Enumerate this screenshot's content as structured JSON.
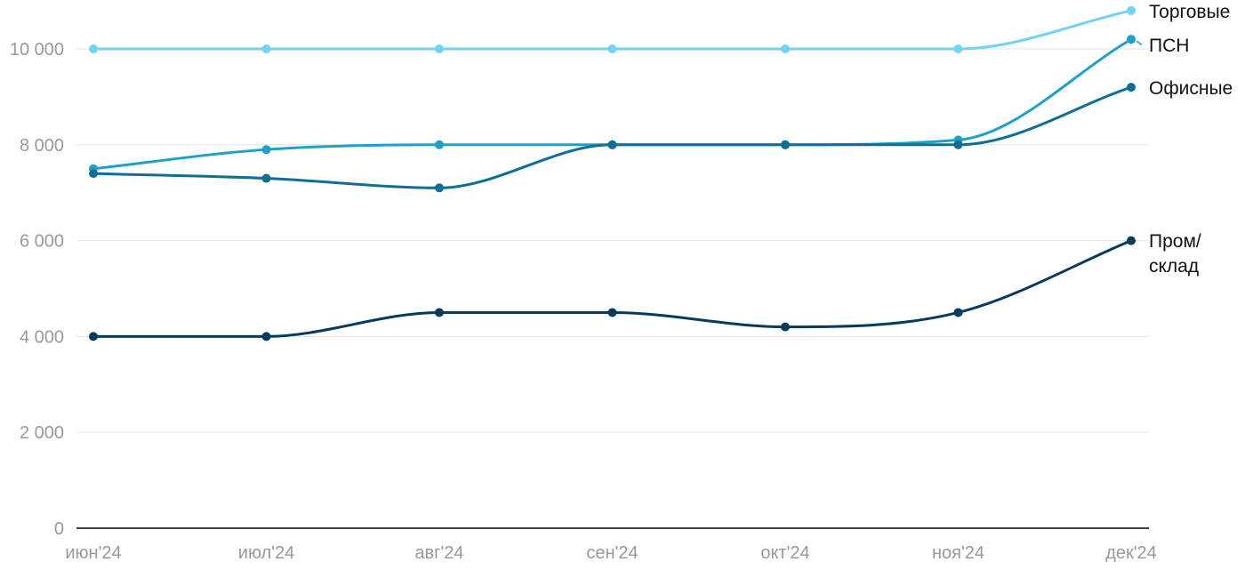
{
  "chart_data": {
    "type": "line",
    "categories": [
      "июн'24",
      "июл'24",
      "авг'24",
      "сен'24",
      "окт'24",
      "ноя'24",
      "дек'24"
    ],
    "ylim": [
      0,
      10800
    ],
    "yticks": [
      0,
      2000,
      4000,
      6000,
      8000,
      10000
    ],
    "ytick_labels": [
      "0",
      "2 000",
      "4 000",
      "6 000",
      "8 000",
      "10 000"
    ],
    "grid": true,
    "legend": "end-of-line labels",
    "series": [
      {
        "name": "Торговые",
        "color": "#6fd3f3",
        "values": [
          10000,
          10000,
          10000,
          10000,
          10000,
          10000,
          10800
        ]
      },
      {
        "name": "ПСН",
        "color": "#1ea1c9",
        "values": [
          7500,
          7900,
          8000,
          8000,
          8000,
          8100,
          10200
        ]
      },
      {
        "name": "Офисные",
        "color": "#0e6f96",
        "values": [
          7400,
          7300,
          7100,
          8000,
          8000,
          8000,
          9200
        ]
      },
      {
        "name": "Пром/склад",
        "label_lines": [
          "Пром/",
          "склад"
        ],
        "color": "#073b5c",
        "values": [
          4000,
          4000,
          4500,
          4500,
          4200,
          4500,
          6000
        ]
      }
    ]
  }
}
